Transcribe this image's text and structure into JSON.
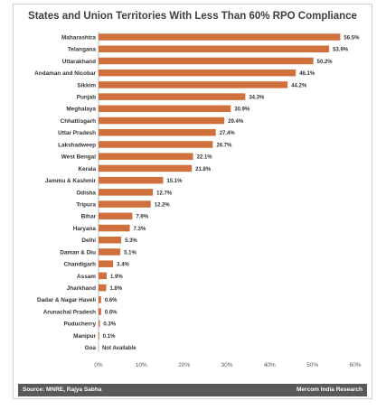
{
  "chart_data": {
    "type": "bar",
    "orientation": "horizontal",
    "title": "States and Union Territories With Less Than 60% RPO Compliance",
    "categories": [
      "Maharashtra",
      "Telangana",
      "Uttarakhand",
      "Andaman and Nicobar",
      "Sikkim",
      "Punjab",
      "Meghalaya",
      "Chhattisgarh",
      "Uttar Pradesh",
      "Lakshadweep",
      "West Bengal",
      "Kerala",
      "Jammu & Kashmir",
      "Odisha",
      "Tripura",
      "Bihar",
      "Haryana",
      "Delhi",
      "Daman & Diu",
      "Chandigarh",
      "Assam",
      "Jharkhand",
      "Dadar & Nagar Haveli",
      "Arunachal Pradesh",
      "Puducherry",
      "Manipur",
      "Goa"
    ],
    "values": [
      56.5,
      53.9,
      50.2,
      46.1,
      44.2,
      34.3,
      30.9,
      29.4,
      27.4,
      26.7,
      22.1,
      21.8,
      15.1,
      12.7,
      12.2,
      7.9,
      7.3,
      5.3,
      5.1,
      3.4,
      1.9,
      1.8,
      0.6,
      0.6,
      0.3,
      0.1,
      null
    ],
    "data_labels": [
      "56.5%",
      "53.9%",
      "50.2%",
      "46.1%",
      "44.2%",
      "34.3%",
      "30.9%",
      "29.4%",
      "27.4%",
      "26.7%",
      "22.1%",
      "21.8%",
      "15.1%",
      "12.7%",
      "12.2%",
      "7.9%",
      "7.3%",
      "5.3%",
      "5.1%",
      "3.4%",
      "1.9%",
      "1.8%",
      "0.6%",
      "0.6%",
      "0.3%",
      "0.1%",
      "Not Available"
    ],
    "xlim": [
      0,
      60
    ],
    "xticks": [
      "0%",
      "10%",
      "20%",
      "30%",
      "40%",
      "50%",
      "60%"
    ],
    "grid": false,
    "bar_color": "#d0703c"
  },
  "footer": {
    "source": "Source: MNRE, Rajya Sabha",
    "credit": "Mercom India Research"
  },
  "colors": {
    "footer_bg": "#595959",
    "title_text": "#404040"
  }
}
